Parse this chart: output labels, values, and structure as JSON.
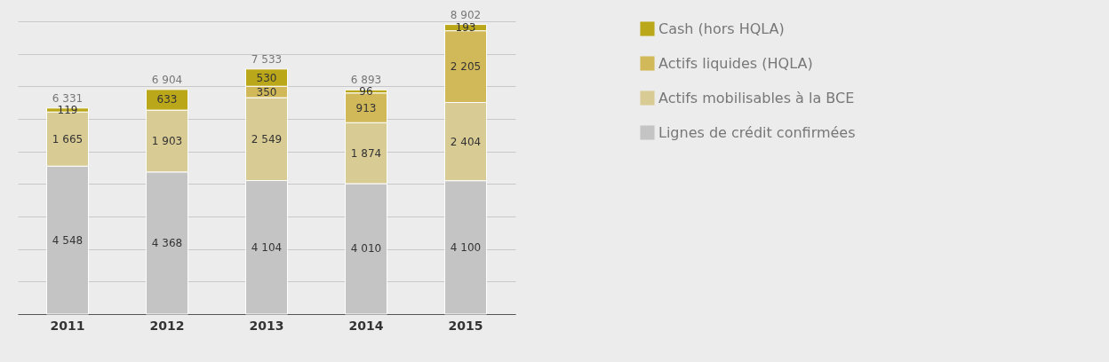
{
  "chart_data": {
    "type": "bar",
    "stacked": true,
    "categories": [
      "2011",
      "2012",
      "2013",
      "2014",
      "2015"
    ],
    "series": [
      {
        "name": "Lignes de crédit confirmées",
        "color": "#c4c4c4",
        "values": [
          4548,
          4368,
          4104,
          4010,
          4100
        ],
        "value_labels": [
          "4 548",
          "4 368",
          "4 104",
          "4 010",
          "4 100"
        ]
      },
      {
        "name": "Actifs mobilisables à la BCE",
        "color": "#d9cb94",
        "values": [
          1665,
          1903,
          2549,
          1874,
          2404
        ],
        "value_labels": [
          "1 665",
          "1 903",
          "2 549",
          "1 874",
          "2 404"
        ]
      },
      {
        "name": "Actifs liquides (HQLA)",
        "color": "#d1b95a",
        "values": [
          null,
          null,
          350,
          913,
          2205
        ],
        "value_labels": [
          null,
          null,
          "350",
          "913",
          "2 205"
        ]
      },
      {
        "name": "Cash (hors HQLA)",
        "color": "#bba71a",
        "values": [
          119,
          633,
          530,
          96,
          193
        ],
        "value_labels": [
          "119",
          "633",
          "530",
          "96",
          "193"
        ]
      }
    ],
    "totals": [
      "6 331",
      "6 904",
      "7 533",
      "6 893",
      "8 902"
    ],
    "grid": "y",
    "legend": "right",
    "tick_labels": "x"
  }
}
